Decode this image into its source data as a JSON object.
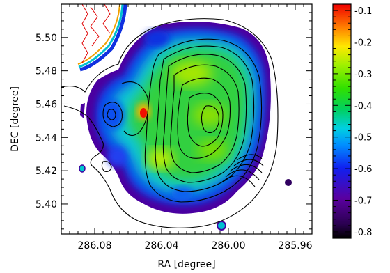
{
  "chart_data": {
    "type": "heatmap",
    "title": "",
    "xlabel": "RA [degree]",
    "ylabel": "DEC [degree]",
    "x_axis": {
      "range": [
        286.1,
        285.95
      ],
      "reversed": true,
      "ticks": [
        286.08,
        286.04,
        286.0,
        285.96
      ],
      "tick_labels": [
        "286.08",
        "286.04",
        "286.00",
        "285.96"
      ]
    },
    "y_axis": {
      "range": [
        5.382,
        5.52
      ],
      "ticks": [
        5.4,
        5.42,
        5.44,
        5.46,
        5.48,
        5.5
      ],
      "tick_labels": [
        "5.40",
        "5.42",
        "5.44",
        "5.46",
        "5.48",
        "5.50"
      ]
    },
    "colorbar": {
      "range": [
        -0.82,
        -0.08
      ],
      "ticks": [
        -0.8,
        -0.7,
        -0.6,
        -0.5,
        -0.4,
        -0.3,
        -0.2,
        -0.1
      ],
      "tick_labels": [
        "-0.8",
        "-0.7",
        "-0.6",
        "-0.5",
        "-0.4",
        "-0.3",
        "-0.2",
        "-0.1"
      ],
      "colormap": "rainbow"
    },
    "map_features": [
      {
        "kind": "hotspot",
        "ra": 286.035,
        "dec": 5.454,
        "value": -0.15
      },
      {
        "kind": "warm",
        "ra": 286.03,
        "dec": 5.428,
        "value": -0.32
      },
      {
        "kind": "warm",
        "ra": 286.02,
        "dec": 5.478,
        "value": -0.33
      },
      {
        "kind": "warm",
        "ra": 286.0,
        "dec": 5.46,
        "value": -0.35
      },
      {
        "kind": "warm",
        "ra": 286.005,
        "dec": 5.43,
        "value": -0.37
      },
      {
        "kind": "cool",
        "ra": 286.062,
        "dec": 5.455,
        "value": -0.55
      },
      {
        "kind": "cool",
        "ra": 286.068,
        "dec": 5.43,
        "value": -0.65
      },
      {
        "kind": "cool",
        "ra": 286.05,
        "dec": 5.5,
        "value": -0.62
      },
      {
        "kind": "cool",
        "ra": 286.022,
        "dec": 5.395,
        "value": -0.55
      }
    ],
    "contours": {
      "color": "#000000",
      "levels_shown": 11,
      "center": {
        "ra": 286.003,
        "dec": 5.447
      }
    },
    "grid": false,
    "legend": "none"
  }
}
